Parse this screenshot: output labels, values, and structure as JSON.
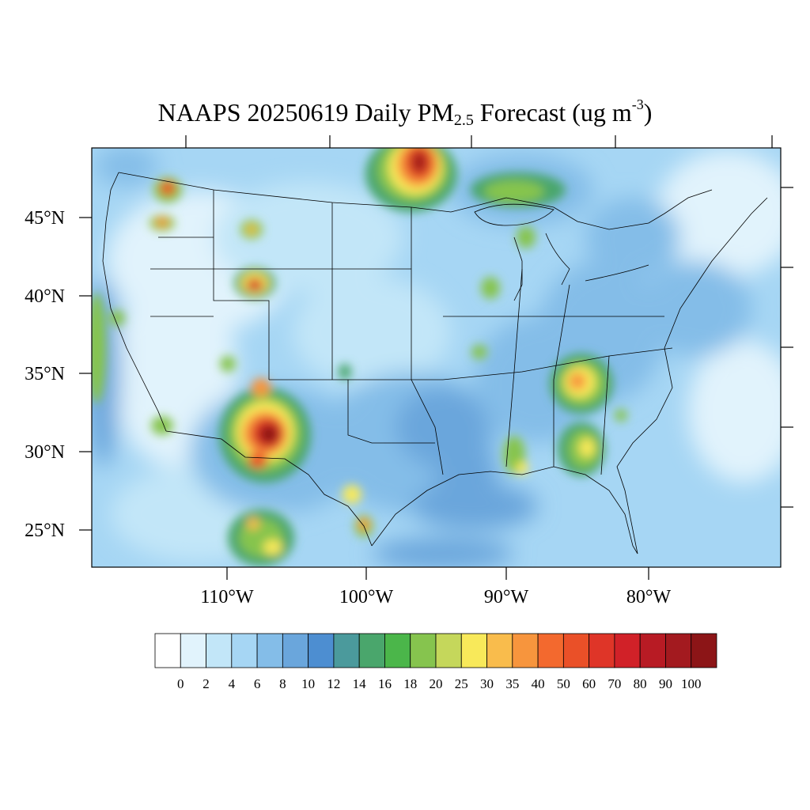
{
  "title": {
    "prefix": "NAAPS 20250619 Daily PM",
    "subscript": "2.5",
    "suffix": " Forecast (ug m",
    "superscript": "-3",
    "close": ")"
  },
  "map": {
    "lat_labels": [
      "45°N",
      "40°N",
      "35°N",
      "30°N",
      "25°N"
    ],
    "lon_labels": [
      "110°W",
      "100°W",
      "90°W",
      "80°W"
    ],
    "background_color": "#a6d6f4",
    "hotspots": [
      {
        "name": "canada-manitoba-smoke",
        "level": 90
      },
      {
        "name": "lake-superior-plume",
        "level": 18
      },
      {
        "name": "michigan-plume",
        "level": 20
      },
      {
        "name": "washington-fire",
        "level": 50
      },
      {
        "name": "oregon-fire",
        "level": 40
      },
      {
        "name": "idaho-montana-fire",
        "level": 30
      },
      {
        "name": "wyoming-fire",
        "level": 70
      },
      {
        "name": "new-mexico-fire",
        "level": 100
      },
      {
        "name": "tennessee-plume",
        "level": 40
      },
      {
        "name": "georgia-plume",
        "level": 30
      },
      {
        "name": "mexico-fires",
        "level": 35
      }
    ]
  },
  "colorbar": {
    "levels": [
      "0",
      "2",
      "4",
      "6",
      "8",
      "10",
      "12",
      "14",
      "16",
      "18",
      "20",
      "25",
      "30",
      "35",
      "40",
      "50",
      "60",
      "70",
      "80",
      "90",
      "100"
    ],
    "colors": [
      "#ffffff",
      "#e1f3fc",
      "#c2e6f8",
      "#a6d6f4",
      "#84bde8",
      "#6aa6dc",
      "#4d8ed1",
      "#4b9a9c",
      "#4aa66c",
      "#4bb64a",
      "#86c44e",
      "#c5d75b",
      "#f8e95a",
      "#f9bc4c",
      "#f7953d",
      "#f3692e",
      "#ea5028",
      "#df3528",
      "#d12128",
      "#b81b24",
      "#a31a1f",
      "#8c1517"
    ]
  }
}
